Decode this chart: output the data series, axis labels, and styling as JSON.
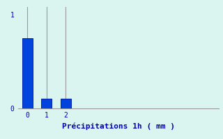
{
  "categories": [
    0,
    1,
    2
  ],
  "values": [
    0.75,
    0.1,
    0.1
  ],
  "bar_color": "#0044dd",
  "bar_edge_color": "#0022aa",
  "background_color": "#daf5f0",
  "text_color": "#0000bb",
  "xlabel": "Précipitations 1h ( mm )",
  "xlabel_fontsize": 8,
  "ylim": [
    0,
    1.08
  ],
  "yticks": [
    0,
    1
  ],
  "ytick_labels": [
    "0",
    "1"
  ],
  "xticks": [
    0,
    1,
    2
  ],
  "grid_color": "#999999",
  "bar_width": 0.55,
  "xlim": [
    -0.5,
    10
  ]
}
